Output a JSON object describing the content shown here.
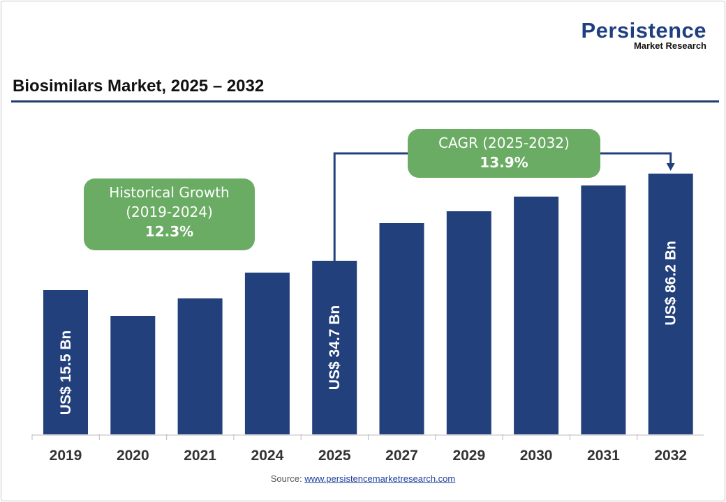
{
  "logo": {
    "name": "Persistence",
    "sub": "Market Research"
  },
  "title": "Biosimilars Market, 2025 – 2032",
  "source": {
    "label": "Source:",
    "link": "www.persistencemarketresearch.com"
  },
  "historical": {
    "label": "Historical Growth",
    "period": "(2019-2024)",
    "value": "12.3%"
  },
  "cagr": {
    "label": "CAGR (2025-2032)",
    "value": "13.9%"
  },
  "colors": {
    "bar": "#22407b",
    "callout": "#6aac64",
    "arrow": "#22407b"
  },
  "chart_data": {
    "type": "bar",
    "title": "Biosimilars Market, 2025 – 2032",
    "categories": [
      "2019",
      "2020",
      "2021",
      "2024",
      "2025",
      "2027",
      "2029",
      "2030",
      "2031",
      "2032"
    ],
    "values": [
      15.5,
      null,
      null,
      null,
      34.7,
      null,
      null,
      null,
      null,
      86.2
    ],
    "data_labels": [
      "US$ 15.5 Bn",
      "",
      "",
      "",
      "US$ 34.7 Bn",
      "",
      "",
      "",
      "",
      "US$ 86.2 Bn"
    ],
    "unit": "US$ Bn",
    "grid": false,
    "legend": "none"
  }
}
